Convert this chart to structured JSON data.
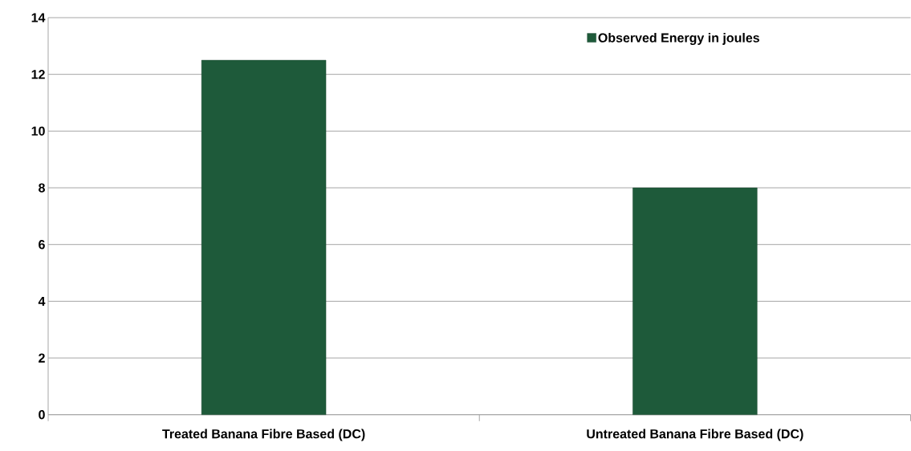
{
  "chart_data": {
    "type": "bar",
    "categories": [
      "Treated Banana Fibre Based (DC)",
      "Untreated Banana Fibre Based (DC)"
    ],
    "series": [
      {
        "name": "Observed Energy in joules",
        "color": "#1e5a3a",
        "values": [
          12.5,
          8
        ]
      }
    ],
    "ylim": [
      0,
      14
    ],
    "yticks": [
      0,
      2,
      4,
      6,
      8,
      10,
      12,
      14
    ],
    "grid": "y",
    "legend": "top right"
  }
}
